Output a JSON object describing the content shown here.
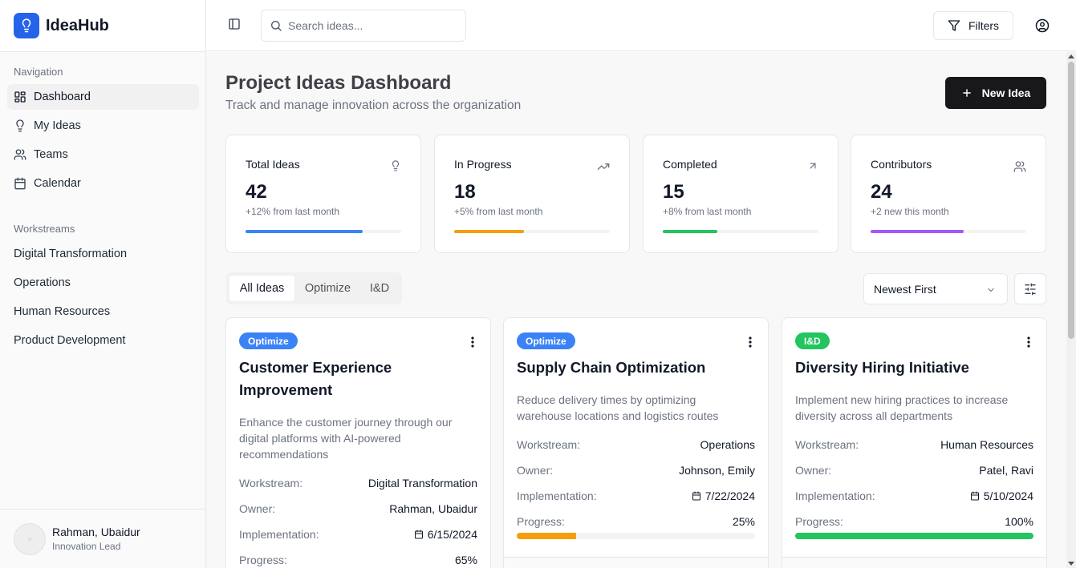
{
  "app": {
    "name": "IdeaHub"
  },
  "sidebar": {
    "nav_label": "Navigation",
    "nav": [
      {
        "label": "Dashboard",
        "icon": "dashboard-grid-icon",
        "active": true
      },
      {
        "label": "My Ideas",
        "icon": "lightbulb-icon"
      },
      {
        "label": "Teams",
        "icon": "users-icon"
      },
      {
        "label": "Calendar",
        "icon": "calendar-icon"
      }
    ],
    "workstreams_label": "Workstreams",
    "workstreams": [
      "Digital Transformation",
      "Operations",
      "Human Resources",
      "Product Development"
    ],
    "user": {
      "name": "Rahman, Ubaidur",
      "role": "Innovation Lead"
    }
  },
  "topbar": {
    "search_placeholder": "Search ideas...",
    "filters_label": "Filters"
  },
  "header": {
    "title": "Project Ideas Dashboard",
    "subtitle": "Track and manage innovation across the organization",
    "new_button": "New Idea"
  },
  "stats": [
    {
      "label": "Total Ideas",
      "value": "42",
      "delta": "+12% from last month",
      "progress": 0.75,
      "color": "#3b82f6",
      "icon": "lightbulb-icon"
    },
    {
      "label": "In Progress",
      "value": "18",
      "delta": "+5% from last month",
      "progress": 0.45,
      "color": "#f59e0b",
      "icon": "trending-up-icon"
    },
    {
      "label": "Completed",
      "value": "15",
      "delta": "+8% from last month",
      "progress": 0.35,
      "color": "#22c55e",
      "icon": "arrow-up-right-icon"
    },
    {
      "label": "Contributors",
      "value": "24",
      "delta": "+2 new this month",
      "progress": 0.6,
      "color": "#a855f7",
      "icon": "users-icon"
    }
  ],
  "tabs": [
    {
      "label": "All Ideas",
      "active": true
    },
    {
      "label": "Optimize"
    },
    {
      "label": "I&D"
    }
  ],
  "sort": {
    "selected": "Newest First"
  },
  "field_labels": {
    "workstream": "Workstream:",
    "owner": "Owner:",
    "implementation": "Implementation:",
    "progress": "Progress:"
  },
  "cards": [
    {
      "tag": "Optimize",
      "tag_color": "#3b82f6",
      "title": "Customer Experience Improvement",
      "description": "Enhance the customer journey through our digital platforms with AI-powered recommendations",
      "workstream": "Digital Transformation",
      "owner": "Rahman, Ubaidur",
      "implementation": "6/15/2024",
      "progress_label": "65%",
      "progress": 0.65,
      "progress_color": "#3b82f6"
    },
    {
      "tag": "Optimize",
      "tag_color": "#3b82f6",
      "title": "Supply Chain Optimization",
      "description": "Reduce delivery times by optimizing warehouse locations and logistics routes",
      "workstream": "Operations",
      "owner": "Johnson, Emily",
      "implementation": "7/22/2024",
      "progress_label": "25%",
      "progress": 0.25,
      "progress_color": "#f59e0b"
    },
    {
      "tag": "I&D",
      "tag_color": "#22c55e",
      "title": "Diversity Hiring Initiative",
      "description": "Implement new hiring practices to increase diversity across all departments",
      "workstream": "Human Resources",
      "owner": "Patel, Ravi",
      "implementation": "5/10/2024",
      "progress_label": "100%",
      "progress": 1.0,
      "progress_color": "#22c55e"
    }
  ]
}
